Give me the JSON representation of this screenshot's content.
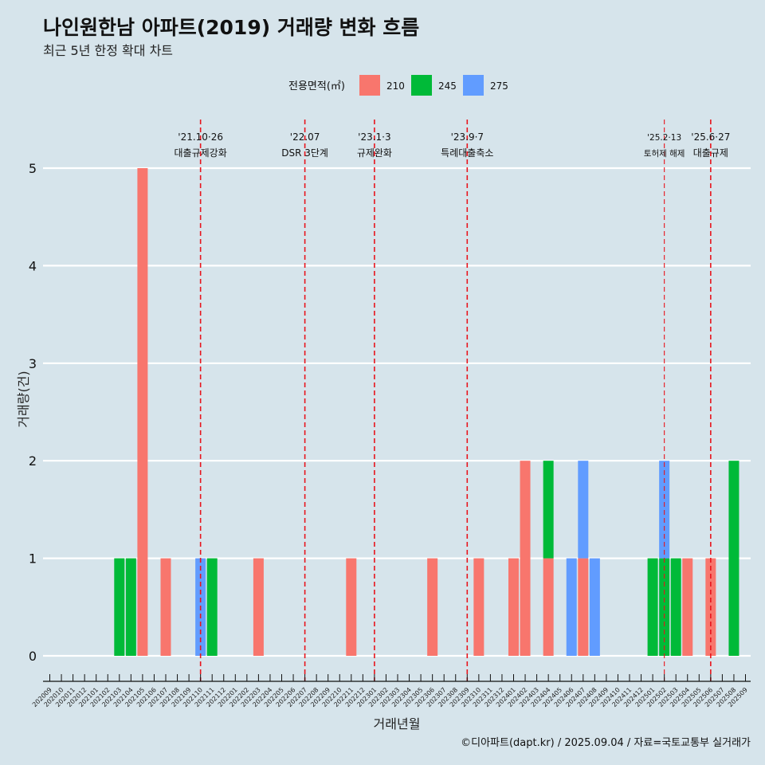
{
  "chart_data": {
    "type": "bar",
    "stacked": true,
    "title": "나인원한남 아파트(2019) 거래량 변화 흐름",
    "subtitle": "최근 5년 한정 확대 차트",
    "xlabel": "거래년월",
    "ylabel": "거래량(건)",
    "ylim": [
      0,
      5
    ],
    "yticks": [
      0,
      1,
      2,
      3,
      4,
      5
    ],
    "legend": {
      "title": "전용면적(㎡)",
      "position": "top",
      "entries": [
        {
          "name": "210",
          "color": "#f8766d"
        },
        {
          "name": "245",
          "color": "#00ba38"
        },
        {
          "name": "275",
          "color": "#619cff"
        }
      ]
    },
    "categories": [
      "202009",
      "202010",
      "202011",
      "202012",
      "202101",
      "202102",
      "202103",
      "202104",
      "202105",
      "202106",
      "202107",
      "202108",
      "202109",
      "202110",
      "202111",
      "202112",
      "202201",
      "202202",
      "202203",
      "202204",
      "202205",
      "202206",
      "202207",
      "202208",
      "202209",
      "202210",
      "202211",
      "202212",
      "202301",
      "202302",
      "202303",
      "202304",
      "202305",
      "202306",
      "202307",
      "202308",
      "202309",
      "202310",
      "202311",
      "202312",
      "202401",
      "202402",
      "202403",
      "202404",
      "202405",
      "202406",
      "202407",
      "202408",
      "202409",
      "202410",
      "202411",
      "202412",
      "202501",
      "202502",
      "202503",
      "202504",
      "202505",
      "202506",
      "202507",
      "202508",
      "202509"
    ],
    "series": [
      {
        "name": "210",
        "values": [
          0,
          0,
          0,
          0,
          0,
          0,
          0,
          0,
          5,
          0,
          1,
          0,
          0,
          0,
          0,
          0,
          0,
          0,
          1,
          0,
          0,
          0,
          0,
          0,
          0,
          0,
          1,
          0,
          0,
          0,
          0,
          0,
          0,
          1,
          0,
          0,
          0,
          1,
          0,
          0,
          1,
          2,
          0,
          1,
          0,
          0,
          1,
          0,
          0,
          0,
          0,
          0,
          0,
          0,
          0,
          1,
          0,
          1,
          0,
          0,
          0
        ]
      },
      {
        "name": "245",
        "values": [
          0,
          0,
          0,
          0,
          0,
          0,
          1,
          1,
          0,
          0,
          0,
          0,
          0,
          0,
          1,
          0,
          0,
          0,
          0,
          0,
          0,
          0,
          0,
          0,
          0,
          0,
          0,
          0,
          0,
          0,
          0,
          0,
          0,
          0,
          0,
          0,
          0,
          0,
          0,
          0,
          0,
          0,
          0,
          1,
          0,
          0,
          0,
          0,
          0,
          0,
          0,
          0,
          1,
          1,
          1,
          0,
          0,
          0,
          0,
          2,
          0
        ]
      },
      {
        "name": "275",
        "values": [
          0,
          0,
          0,
          0,
          0,
          0,
          0,
          0,
          0,
          0,
          0,
          0,
          0,
          1,
          0,
          0,
          0,
          0,
          0,
          0,
          0,
          0,
          0,
          0,
          0,
          0,
          0,
          0,
          0,
          0,
          0,
          0,
          0,
          0,
          0,
          0,
          0,
          0,
          0,
          0,
          0,
          0,
          0,
          0,
          0,
          1,
          1,
          1,
          0,
          0,
          0,
          0,
          0,
          1,
          0,
          0,
          0,
          0,
          0,
          0,
          0
        ]
      }
    ],
    "annotations": [
      {
        "x": "202110",
        "line1": "'21.10·26",
        "line2": "대출규제강화",
        "small": false
      },
      {
        "x": "202207",
        "line1": "'22.07",
        "line2": "DSR 3단계",
        "small": false
      },
      {
        "x": "202301",
        "line1": "'23.1·3",
        "line2": "규제완화",
        "small": false
      },
      {
        "x": "202309",
        "line1": "'23.9·7",
        "line2": "특례대출축소",
        "small": false
      },
      {
        "x": "202502",
        "line1": "'25.2·13",
        "line2": "토허제 해제",
        "small": true
      },
      {
        "x": "202506",
        "line1": "'25.6·27",
        "line2": "대출규제",
        "small": false
      }
    ],
    "caption": "©디아파트(dapt.kr) / 2025.09.04 / 자료=국토교통부 실거래가"
  }
}
